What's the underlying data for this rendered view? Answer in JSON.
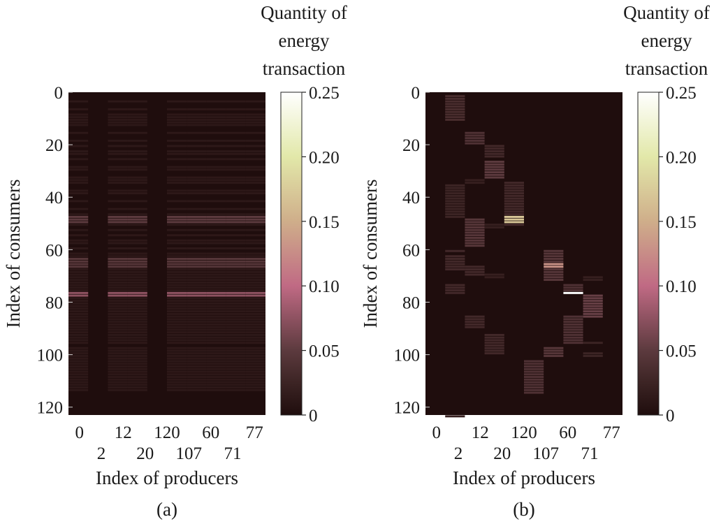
{
  "chart_data": [
    {
      "type": "heatmap",
      "panel_label": "(a)",
      "xlabel": "Index of producers",
      "ylabel": "Index of consumers",
      "colorbar_label": [
        "Quantity of",
        "energy",
        "transaction"
      ],
      "colorbar_ticks": [
        "0",
        "0.05",
        "0.10",
        "0.15",
        "0.20",
        "0.25"
      ],
      "color_range": [
        0,
        0.25
      ],
      "y_range": [
        0,
        123
      ],
      "y_ticks": [
        "0",
        "20",
        "40",
        "60",
        "80",
        "100",
        "120"
      ],
      "x_tick_labels_row1": [
        "0",
        "12",
        "120",
        "60",
        "77"
      ],
      "x_tick_labels_row2": [
        "2",
        "20",
        "107",
        "71"
      ],
      "columns": 10,
      "bands": [
        {
          "cols": [
            0,
            2,
            3,
            5,
            6,
            7,
            8,
            9
          ],
          "rows": [
            3,
            6,
            8,
            9,
            10,
            11,
            12,
            15,
            18,
            20,
            22,
            23,
            25,
            28,
            29,
            32,
            33,
            34,
            37,
            38,
            41,
            44,
            46,
            47,
            49,
            50,
            52,
            54,
            56,
            57,
            59,
            61,
            62,
            63,
            64,
            65,
            66,
            67,
            68,
            69,
            70,
            71,
            72,
            73,
            74,
            75,
            76,
            77,
            78,
            79,
            80,
            81,
            82,
            83,
            84,
            85,
            86,
            87,
            88,
            89,
            90,
            91,
            92,
            93,
            94,
            95,
            97,
            98,
            99,
            100,
            101,
            102,
            103,
            104,
            105,
            106,
            107,
            108,
            109,
            110,
            111,
            112,
            113
          ],
          "value": 0.012
        },
        {
          "cols": [
            0,
            2,
            3,
            5,
            6,
            7,
            8,
            9
          ],
          "rows": [
            47,
            48,
            49
          ],
          "value": 0.05
        },
        {
          "cols": [
            0,
            2,
            3,
            5,
            6,
            7,
            8,
            9
          ],
          "rows": [
            63,
            64,
            65,
            66
          ],
          "value": 0.045
        },
        {
          "cols": [
            0,
            2,
            3,
            5,
            6,
            7,
            8,
            9
          ],
          "rows": [
            76,
            77
          ],
          "value": 0.075
        }
      ]
    },
    {
      "type": "heatmap",
      "panel_label": "(b)",
      "xlabel": "Index of producers",
      "ylabel": "Index of consumers",
      "colorbar_label": [
        "Quantity of",
        "energy",
        "transaction"
      ],
      "colorbar_ticks": [
        "0",
        "0.05",
        "0.10",
        "0.15",
        "0.20",
        "0.25"
      ],
      "color_range": [
        0,
        0.25
      ],
      "y_range": [
        0,
        123
      ],
      "y_ticks": [
        "0",
        "20",
        "40",
        "60",
        "80",
        "100",
        "120"
      ],
      "x_tick_labels_row1": [
        "0",
        "12",
        "120",
        "60",
        "77"
      ],
      "x_tick_labels_row2": [
        "2",
        "20",
        "107",
        "71"
      ],
      "columns": 10,
      "cells": [
        {
          "col": 1,
          "rows": [
            1,
            2,
            3,
            4,
            5,
            6,
            7,
            8,
            9,
            10
          ],
          "value": 0.035
        },
        {
          "col": 1,
          "rows": [
            35,
            36,
            37,
            38,
            39,
            40,
            41,
            42,
            43,
            44,
            45,
            46,
            47
          ],
          "value": 0.025
        },
        {
          "col": 1,
          "rows": [
            60,
            62,
            63,
            64,
            65,
            66,
            67
          ],
          "value": 0.03
        },
        {
          "col": 1,
          "rows": [
            73,
            74,
            75,
            76
          ],
          "value": 0.03
        },
        {
          "col": 1,
          "rows": [
            123
          ],
          "value": 0.02
        },
        {
          "col": 2,
          "rows": [
            15,
            16,
            17,
            18,
            19
          ],
          "value": 0.04
        },
        {
          "col": 2,
          "rows": [
            33,
            34
          ],
          "value": 0.02
        },
        {
          "col": 2,
          "rows": [
            48,
            49,
            50,
            51,
            52,
            53,
            54,
            55,
            56,
            57,
            58
          ],
          "value": 0.045
        },
        {
          "col": 2,
          "rows": [
            66,
            67,
            68,
            69
          ],
          "value": 0.03
        },
        {
          "col": 2,
          "rows": [
            85,
            86,
            87,
            88,
            89
          ],
          "value": 0.03
        },
        {
          "col": 3,
          "rows": [
            20,
            21,
            22,
            23,
            24
          ],
          "value": 0.03
        },
        {
          "col": 3,
          "rows": [
            26,
            27,
            28,
            29,
            30,
            31,
            32
          ],
          "value": 0.05
        },
        {
          "col": 3,
          "rows": [
            50,
            51
          ],
          "value": 0.02
        },
        {
          "col": 3,
          "rows": [
            69,
            70
          ],
          "value": 0.02
        },
        {
          "col": 3,
          "rows": [
            92,
            93,
            94,
            95,
            96,
            97,
            98,
            99
          ],
          "value": 0.03
        },
        {
          "col": 4,
          "rows": [
            34,
            35,
            36,
            37,
            38,
            39,
            40,
            41,
            42,
            43,
            44,
            45,
            46,
            47,
            50
          ],
          "value": 0.03
        },
        {
          "col": 4,
          "rows": [
            47,
            48,
            49
          ],
          "value": 0.17
        },
        {
          "col": 5,
          "rows": [
            102,
            103,
            104,
            105,
            106,
            107,
            108,
            109,
            110,
            111,
            112,
            113,
            114
          ],
          "value": 0.04
        },
        {
          "col": 6,
          "rows": [
            60,
            61,
            62,
            63,
            64,
            67,
            68,
            69,
            70,
            71
          ],
          "value": 0.045
        },
        {
          "col": 6,
          "rows": [
            65,
            66
          ],
          "value": 0.13
        },
        {
          "col": 6,
          "rows": [
            97,
            98,
            99,
            100
          ],
          "value": 0.045
        },
        {
          "col": 7,
          "rows": [
            73,
            74,
            75
          ],
          "value": 0.04
        },
        {
          "col": 7,
          "rows": [
            76
          ],
          "value": 0.25
        },
        {
          "col": 7,
          "rows": [
            85,
            86,
            87,
            88,
            89,
            90,
            91,
            92,
            93,
            94,
            95
          ],
          "value": 0.04
        },
        {
          "col": 8,
          "rows": [
            70,
            71
          ],
          "value": 0.02
        },
        {
          "col": 8,
          "rows": [
            77,
            78,
            79,
            80,
            81,
            82,
            83,
            84,
            85
          ],
          "value": 0.055
        },
        {
          "col": 8,
          "rows": [
            95,
            99,
            100
          ],
          "value": 0.025
        }
      ]
    }
  ]
}
